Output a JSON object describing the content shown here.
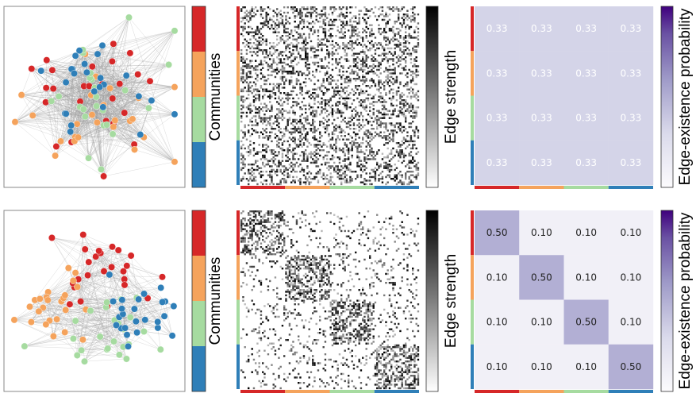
{
  "colors": {
    "communities": [
      "#d62728",
      "#f5a35c",
      "#a6dba0",
      "#2f7fb8"
    ],
    "edge_strength_cmap": [
      "#ffffff",
      "#000000"
    ],
    "probability_cmap": [
      "#fcfbfd",
      "#dadaeb",
      "#9e9ac8",
      "#6a51a3",
      "#3f007d"
    ]
  },
  "labels": {
    "communities": "Communities",
    "edge_strength": "Edge strength",
    "edge_probability": "Edge-existence probability"
  },
  "chart_data": [
    {
      "type": "network",
      "row": 0,
      "nodes_per_community": 25,
      "communities": 4,
      "layout": "mixed"
    },
    {
      "type": "heatmap",
      "row": 0,
      "kind": "adjacency",
      "size": 100,
      "block_density": [
        [
          0.33,
          0.33,
          0.33,
          0.33
        ],
        [
          0.33,
          0.33,
          0.33,
          0.33
        ],
        [
          0.33,
          0.33,
          0.33,
          0.33
        ],
        [
          0.33,
          0.33,
          0.33,
          0.33
        ]
      ]
    },
    {
      "type": "heatmap",
      "row": 0,
      "kind": "probability",
      "values": [
        [
          0.33,
          0.33,
          0.33,
          0.33
        ],
        [
          0.33,
          0.33,
          0.33,
          0.33
        ],
        [
          0.33,
          0.33,
          0.33,
          0.33
        ],
        [
          0.33,
          0.33,
          0.33,
          0.33
        ]
      ],
      "cell_labels": [
        [
          "0.33",
          "0.33",
          "0.33",
          "0.33"
        ],
        [
          "0.33",
          "0.33",
          "0.33",
          "0.33"
        ],
        [
          "0.33",
          "0.33",
          "0.33",
          "0.33"
        ],
        [
          "0.33",
          "0.33",
          "0.33",
          "0.33"
        ]
      ]
    },
    {
      "type": "network",
      "row": 1,
      "nodes_per_community": 25,
      "communities": 4,
      "layout": "clustered"
    },
    {
      "type": "heatmap",
      "row": 1,
      "kind": "adjacency",
      "size": 100,
      "block_density": [
        [
          0.5,
          0.1,
          0.1,
          0.1
        ],
        [
          0.1,
          0.5,
          0.1,
          0.1
        ],
        [
          0.1,
          0.1,
          0.5,
          0.1
        ],
        [
          0.1,
          0.1,
          0.1,
          0.5
        ]
      ]
    },
    {
      "type": "heatmap",
      "row": 1,
      "kind": "probability",
      "values": [
        [
          0.5,
          0.1,
          0.1,
          0.1
        ],
        [
          0.1,
          0.5,
          0.1,
          0.1
        ],
        [
          0.1,
          0.1,
          0.5,
          0.1
        ],
        [
          0.1,
          0.1,
          0.1,
          0.5
        ]
      ],
      "cell_labels": [
        [
          "0.50",
          "0.10",
          "0.10",
          "0.10"
        ],
        [
          "0.10",
          "0.50",
          "0.10",
          "0.10"
        ],
        [
          "0.10",
          "0.10",
          "0.50",
          "0.10"
        ],
        [
          "0.10",
          "0.10",
          "0.10",
          "0.50"
        ]
      ]
    }
  ]
}
